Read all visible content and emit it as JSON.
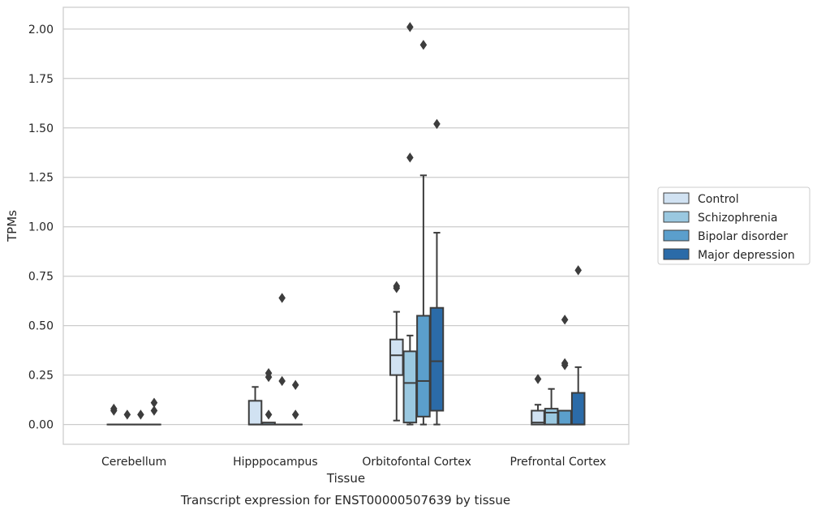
{
  "chart_data": {
    "type": "box",
    "xlabel": "Tissue",
    "ylabel": "TPMs",
    "caption": "Transcript expression for ENST00000507639 by tissue",
    "ylim": [
      -0.1,
      2.11
    ],
    "yticks": [
      "0.00",
      "0.25",
      "0.50",
      "0.75",
      "1.00",
      "1.25",
      "1.50",
      "1.75",
      "2.00"
    ],
    "ytick_values": [
      0,
      0.25,
      0.5,
      0.75,
      1.0,
      1.25,
      1.5,
      1.75,
      2.0
    ],
    "grid": true,
    "legend_position": "right",
    "categories": [
      "Cerebellum",
      "Hipppocampus",
      "Orbitofontal Cortex",
      "Prefrontal Cortex"
    ],
    "series": [
      {
        "name": "Control",
        "color": "#d1e2f2",
        "boxes": [
          {
            "q1": 0,
            "median": 0,
            "q3": 0,
            "whislo": 0,
            "whishi": 0,
            "fliers": [
              0.07,
              0.08
            ]
          },
          {
            "q1": 0,
            "median": 0,
            "q3": 0.12,
            "whislo": 0,
            "whishi": 0.19,
            "fliers": []
          },
          {
            "q1": 0.25,
            "median": 0.35,
            "q3": 0.43,
            "whislo": 0.02,
            "whishi": 0.57,
            "fliers": [
              0.69,
              0.7
            ]
          },
          {
            "q1": 0,
            "median": 0.01,
            "q3": 0.07,
            "whislo": 0,
            "whishi": 0.1,
            "fliers": [
              0.23
            ]
          }
        ]
      },
      {
        "name": "Schizophrenia",
        "color": "#9ac8e0",
        "boxes": [
          {
            "q1": 0,
            "median": 0,
            "q3": 0,
            "whislo": 0,
            "whishi": 0,
            "fliers": [
              0.05
            ]
          },
          {
            "q1": 0,
            "median": 0,
            "q3": 0.01,
            "whislo": 0,
            "whishi": 0.01,
            "fliers": [
              0.05,
              0.24,
              0.26
            ]
          },
          {
            "q1": 0.01,
            "median": 0.21,
            "q3": 0.37,
            "whislo": 0,
            "whishi": 0.45,
            "fliers": [
              1.35,
              2.01
            ]
          },
          {
            "q1": 0,
            "median": 0.06,
            "q3": 0.08,
            "whislo": 0,
            "whishi": 0.18,
            "fliers": []
          }
        ]
      },
      {
        "name": "Bipolar disorder",
        "color": "#5b9fcc",
        "boxes": [
          {
            "q1": 0,
            "median": 0,
            "q3": 0,
            "whislo": 0,
            "whishi": 0,
            "fliers": [
              0.05
            ]
          },
          {
            "q1": 0,
            "median": 0,
            "q3": 0,
            "whislo": 0,
            "whishi": 0,
            "fliers": [
              0.22,
              0.64
            ]
          },
          {
            "q1": 0.04,
            "median": 0.22,
            "q3": 0.55,
            "whislo": 0,
            "whishi": 1.26,
            "fliers": [
              1.92
            ]
          },
          {
            "q1": 0,
            "median": 0,
            "q3": 0.07,
            "whislo": 0,
            "whishi": 0.07,
            "fliers": [
              0.3,
              0.31,
              0.53
            ]
          }
        ]
      },
      {
        "name": "Major depression",
        "color": "#2b6ba8",
        "boxes": [
          {
            "q1": 0,
            "median": 0,
            "q3": 0,
            "whislo": 0,
            "whishi": 0,
            "fliers": [
              0.07,
              0.11
            ]
          },
          {
            "q1": 0,
            "median": 0,
            "q3": 0,
            "whislo": 0,
            "whishi": 0,
            "fliers": [
              0.05,
              0.2
            ]
          },
          {
            "q1": 0.07,
            "median": 0.32,
            "q3": 0.59,
            "whislo": 0,
            "whishi": 0.97,
            "fliers": [
              1.52
            ]
          },
          {
            "q1": 0,
            "median": 0,
            "q3": 0.16,
            "whislo": 0,
            "whishi": 0.29,
            "fliers": [
              0.78
            ]
          }
        ]
      }
    ]
  }
}
